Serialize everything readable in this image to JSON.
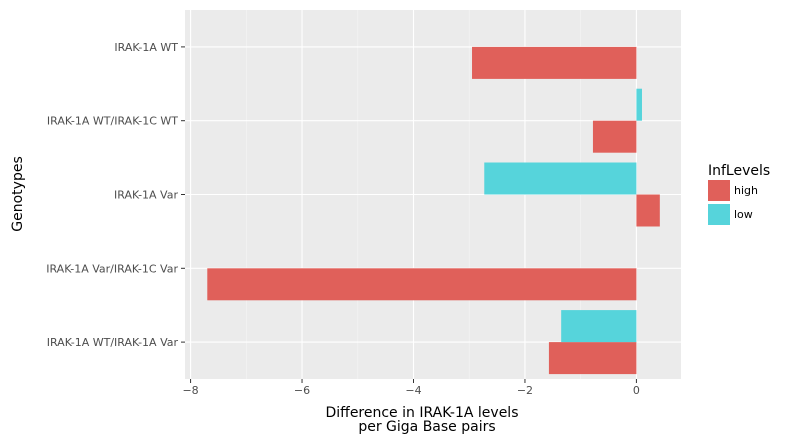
{
  "chart_data": {
    "type": "bar",
    "orientation": "horizontal",
    "categories": [
      "IRAK-1A WT",
      "IRAK-1A WT/IRAK-1C WT",
      "IRAK-1A Var",
      "IRAK-1A Var/IRAK-1C Var",
      "IRAK-1A WT/IRAK-1A Var"
    ],
    "series": [
      {
        "name": "high",
        "color": "#e0605a",
        "values": [
          -2.95,
          -0.78,
          0.42,
          -7.7,
          -1.57
        ]
      },
      {
        "name": "low",
        "color": "#56d4db",
        "values": [
          null,
          0.1,
          -2.73,
          null,
          -1.35
        ]
      }
    ],
    "xlabel_line1": "Difference in  IRAK-1A levels",
    "xlabel_line2": "per Giga Base pairs",
    "ylabel": "Genotypes",
    "xlim": [
      -8.1,
      0.8
    ],
    "x_ticks": [
      -8,
      -6,
      -4,
      -2,
      0
    ],
    "x_tick_labels": [
      "−8",
      "−6",
      "−4",
      "−2",
      "0"
    ],
    "legend_title": "InfLevels",
    "legend_position": "right",
    "grid": true,
    "panel_background": "#ebebeb",
    "grid_color": "#ffffff"
  }
}
